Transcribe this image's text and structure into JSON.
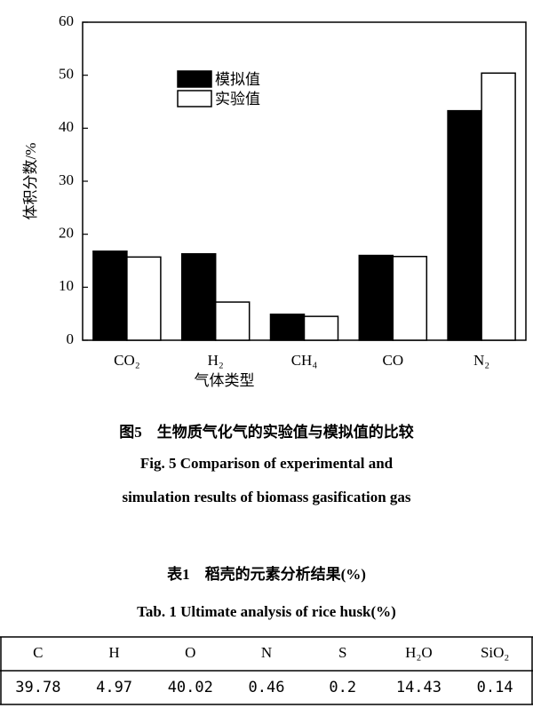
{
  "chart_data": {
    "type": "bar",
    "ylabel": "体积分数/%",
    "xlabel": "气体类型",
    "categories": [
      "CO₂",
      "H₂",
      "CH₄",
      "CO",
      "N₂"
    ],
    "series": [
      {
        "name": "模拟值",
        "color": "#000000",
        "values": [
          16.8,
          16.3,
          4.9,
          16.0,
          43.3
        ]
      },
      {
        "name": "实验值",
        "color": "#ffffff",
        "values": [
          15.7,
          7.2,
          4.5,
          15.8,
          50.4
        ]
      }
    ],
    "ylim": [
      0,
      60
    ],
    "yticks": [
      0,
      10,
      20,
      30,
      40,
      50,
      60
    ],
    "legend": "upper left"
  },
  "figure_caption": {
    "cn": "图5　生物质气化气的实验值与模拟值的比较",
    "en": [
      "Fig. 5 Comparison of experimental and",
      "simulation results of biomass gasification gas"
    ]
  },
  "table_caption": {
    "cn": "表1　稻壳的元素分析结果(%)",
    "en": "Tab. 1 Ultimate analysis of rice husk(%)"
  },
  "table": {
    "header": [
      "C",
      "H",
      "O",
      "N",
      "S",
      "H₂O",
      "SiO₂"
    ],
    "rows": [
      [
        "39.78",
        "4.97",
        "40.02",
        "0.46",
        "0.2",
        "14.43",
        "0.14"
      ]
    ]
  }
}
